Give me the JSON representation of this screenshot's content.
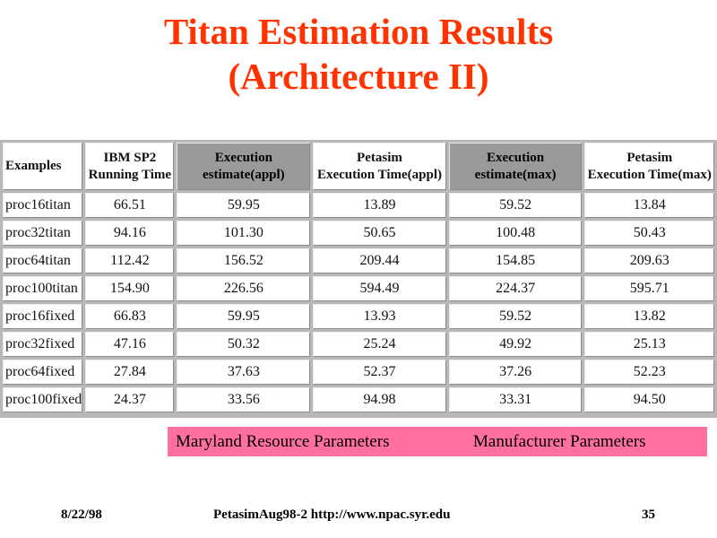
{
  "slide": {
    "title_line1": "Titan Estimation Results",
    "title_line2": "(Architecture II)"
  },
  "table": {
    "headers": [
      {
        "line1": "Examples",
        "line2": ""
      },
      {
        "line1": "IBM SP2",
        "line2": "Running Time"
      },
      {
        "line1": "Execution",
        "line2": "estimate(appl)"
      },
      {
        "line1": "Petasim",
        "line2": "Execution Time(appl)"
      },
      {
        "line1": "Execution",
        "line2": "estimate(max)"
      },
      {
        "line1": "Petasim",
        "line2": "Execution Time(max)"
      }
    ],
    "rows": [
      [
        "proc16titan",
        "66.51",
        "59.95",
        "13.89",
        "59.52",
        "13.84"
      ],
      [
        "proc32titan",
        "94.16",
        "101.30",
        "50.65",
        "100.48",
        "50.43"
      ],
      [
        "proc64titan",
        "112.42",
        "156.52",
        "209.44",
        "154.85",
        "209.63"
      ],
      [
        "proc100titan",
        "154.90",
        "226.56",
        "594.49",
        "224.37",
        "595.71"
      ],
      [
        "proc16fixed",
        "66.83",
        "59.95",
        "13.93",
        "59.52",
        "13.82"
      ],
      [
        "proc32fixed",
        "47.16",
        "50.32",
        "25.24",
        "49.92",
        "25.13"
      ],
      [
        "proc64fixed",
        "27.84",
        "37.63",
        "52.37",
        "37.26",
        "52.23"
      ],
      [
        "proc100fixed",
        "24.37",
        "33.56",
        "94.98",
        "33.31",
        "94.50"
      ]
    ]
  },
  "legend": {
    "left": "Maryland Resource Parameters",
    "right": "Manufacturer Parameters"
  },
  "footer": {
    "date": "8/22/98",
    "center": "PetasimAug98-2  http://www.npac.syr.edu",
    "page": "35"
  },
  "colors": {
    "title": "#ff3300",
    "highlight_header": "#9a9a9a",
    "legend_bar": "#ff6fa0"
  }
}
